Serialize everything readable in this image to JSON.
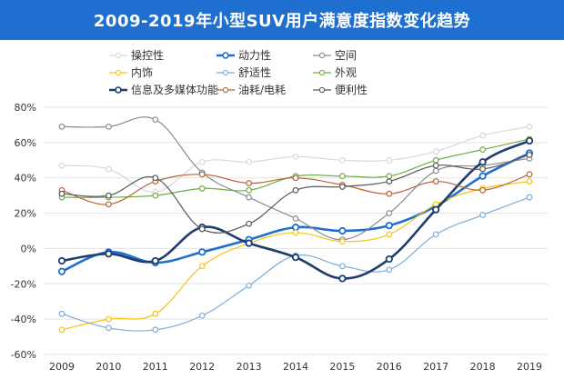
{
  "title": "2009-2019年小型SUV用户满意度指数变化趋势",
  "chart_data": {
    "type": "line",
    "x": [
      "2009",
      "2010",
      "2011",
      "2012",
      "2013",
      "2014",
      "2015",
      "2016",
      "2017",
      "2018",
      "2019"
    ],
    "ylim": [
      -60,
      80
    ],
    "yticks": [
      "80%",
      "60%",
      "40%",
      "20%",
      "0%",
      "-20%",
      "-40%",
      "-60%"
    ],
    "grid": true,
    "legend_position": "top",
    "series": [
      {
        "name": "操控性",
        "color": "#d9d9d9",
        "width": 1.2,
        "values": [
          47,
          45,
          32,
          49,
          49,
          52,
          50,
          50,
          55,
          64,
          69
        ]
      },
      {
        "name": "动力性",
        "color": "#1f6fd1",
        "width": 2.6,
        "values": [
          -13,
          -2,
          -8,
          -2,
          5,
          12,
          10,
          13,
          24,
          41,
          54
        ]
      },
      {
        "name": "空间",
        "color": "#8c8c8c",
        "width": 1.2,
        "values": [
          69,
          69,
          73,
          43,
          29,
          17,
          5,
          20,
          44,
          47,
          51
        ]
      },
      {
        "name": "内饰",
        "color": "#f5c518",
        "width": 1.2,
        "values": [
          -46,
          -40,
          -37,
          -10,
          3,
          9,
          4,
          8,
          25,
          34,
          38
        ]
      },
      {
        "name": "舒适性",
        "color": "#7eadd8",
        "width": 1.2,
        "values": [
          -37,
          -45,
          -46,
          -38,
          -21,
          -4,
          -10,
          -12,
          8,
          19,
          29
        ]
      },
      {
        "name": "外观",
        "color": "#70ad47",
        "width": 1.2,
        "values": [
          29,
          29,
          30,
          34,
          33,
          41,
          41,
          41,
          50,
          56,
          62
        ]
      },
      {
        "name": "信息及多媒体功能",
        "color": "#213d6e",
        "width": 2.6,
        "values": [
          -7,
          -3,
          -7,
          12,
          3,
          -5,
          -17,
          -6,
          22,
          49,
          61
        ]
      },
      {
        "name": "油耗/电耗",
        "color": "#b5653a",
        "width": 1.2,
        "values": [
          33,
          25,
          38,
          42,
          37,
          40,
          36,
          31,
          38,
          33,
          42
        ]
      },
      {
        "name": "便利性",
        "color": "#595959",
        "width": 1.2,
        "values": [
          31,
          30,
          40,
          11,
          14,
          33,
          35,
          38,
          47,
          45,
          53
        ]
      }
    ]
  }
}
